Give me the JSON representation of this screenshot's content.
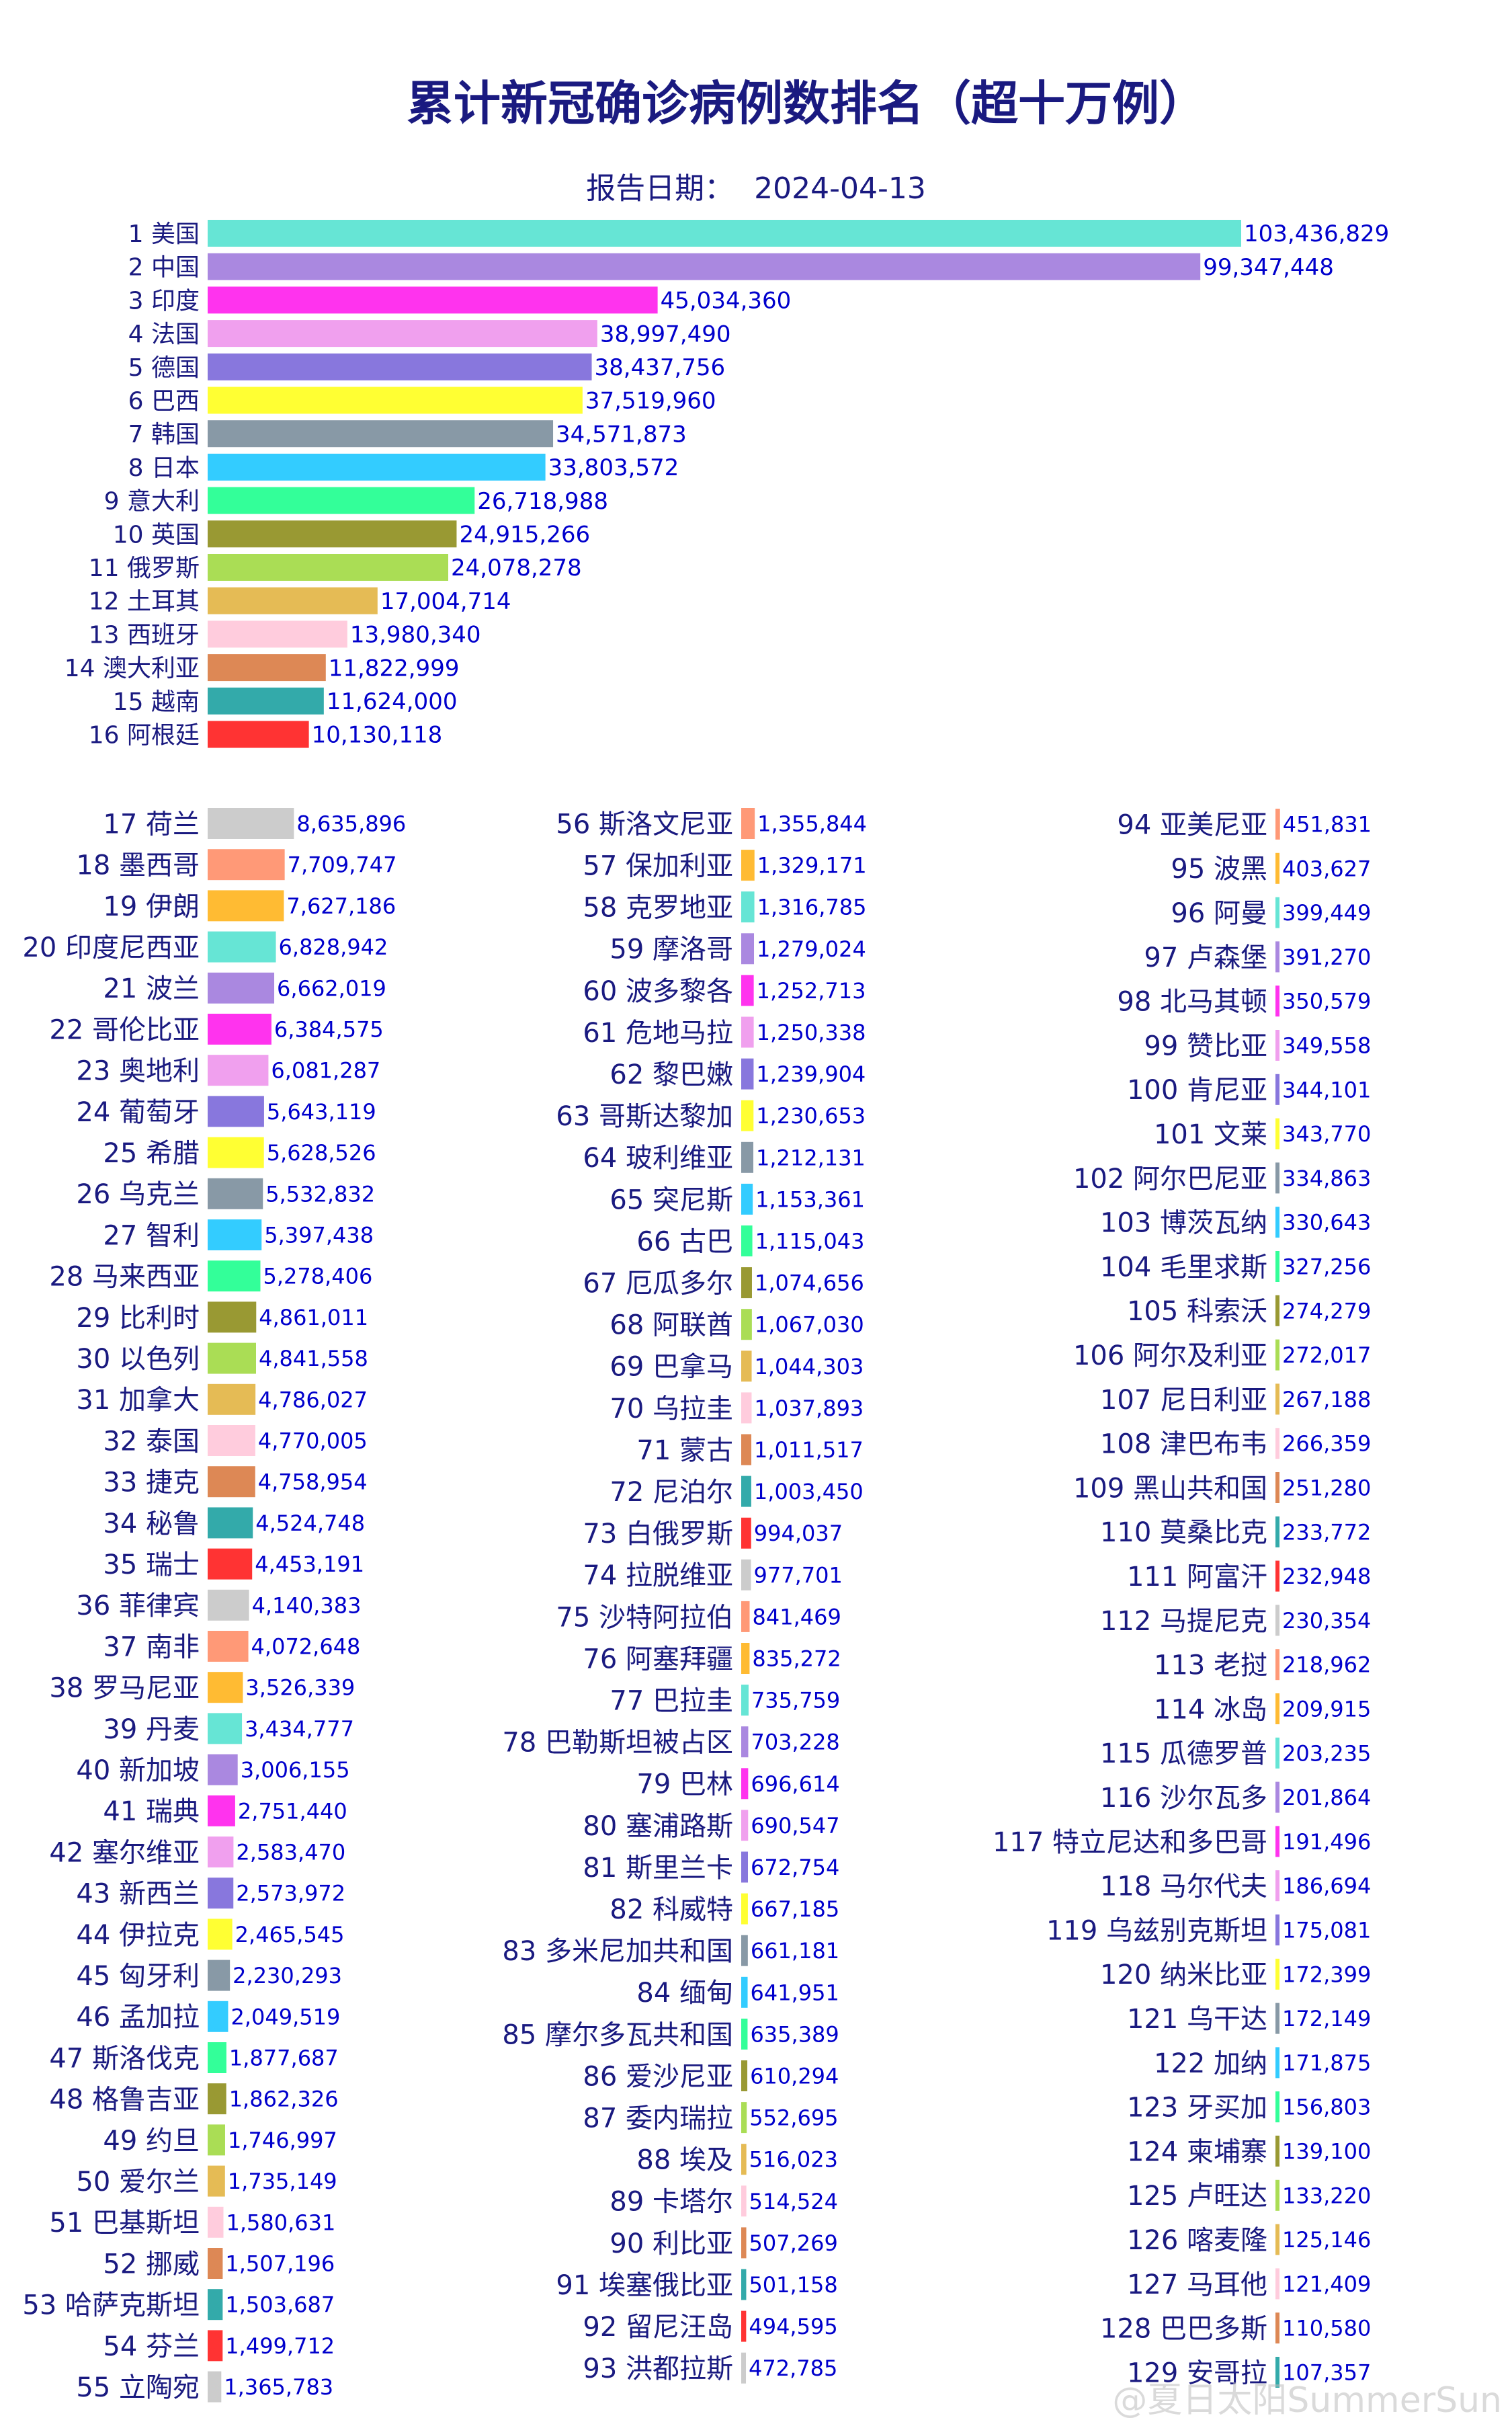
{
  "chart_data": {
    "type": "bar",
    "orientation": "horizontal",
    "title": "累计新冠确诊病例数排名（超十万例）",
    "subtitle_label": "报告日期：",
    "report_date": "2024-04-13",
    "watermark": "@夏日太阳SummerSun",
    "colors": [
      "#66e5d5",
      "#aa88e0",
      "#ff33ee",
      "#f0a0ee",
      "#8877dd",
      "#ffff33",
      "#8899a6",
      "#33ccff",
      "#33ff99",
      "#999933",
      "#aadd55",
      "#e5bb55",
      "#ffccdd",
      "#dd8855",
      "#33aaaa",
      "#ff3333",
      "#cccccc",
      "#ff9977",
      "#ffbb33"
    ],
    "categories": [
      "美国",
      "中国",
      "印度",
      "法国",
      "德国",
      "巴西",
      "韩国",
      "日本",
      "意大利",
      "英国",
      "俄罗斯",
      "土耳其",
      "西班牙",
      "澳大利亚",
      "越南",
      "阿根廷",
      "荷兰",
      "墨西哥",
      "伊朗",
      "印度尼西亚",
      "波兰",
      "哥伦比亚",
      "奥地利",
      "葡萄牙",
      "希腊",
      "乌克兰",
      "智利",
      "马来西亚",
      "比利时",
      "以色列",
      "加拿大",
      "泰国",
      "捷克",
      "秘鲁",
      "瑞士",
      "菲律宾",
      "南非",
      "罗马尼亚",
      "丹麦",
      "新加坡",
      "瑞典",
      "塞尔维亚",
      "新西兰",
      "伊拉克",
      "匈牙利",
      "孟加拉",
      "斯洛伐克",
      "格鲁吉亚",
      "约旦",
      "爱尔兰",
      "巴基斯坦",
      "挪威",
      "哈萨克斯坦",
      "芬兰",
      "立陶宛",
      "斯洛文尼亚",
      "保加利亚",
      "克罗地亚",
      "摩洛哥",
      "波多黎各",
      "危地马拉",
      "黎巴嫩",
      "哥斯达黎加",
      "玻利维亚",
      "突尼斯",
      "古巴",
      "厄瓜多尔",
      "阿联酋",
      "巴拿马",
      "乌拉圭",
      "蒙古",
      "尼泊尔",
      "白俄罗斯",
      "拉脱维亚",
      "沙特阿拉伯",
      "阿塞拜疆",
      "巴拉圭",
      "巴勒斯坦被占区",
      "巴林",
      "塞浦路斯",
      "斯里兰卡",
      "科威特",
      "多米尼加共和国",
      "缅甸",
      "摩尔多瓦共和国",
      "爱沙尼亚",
      "委内瑞拉",
      "埃及",
      "卡塔尔",
      "利比亚",
      "埃塞俄比亚",
      "留尼汪岛",
      "洪都拉斯",
      "亚美尼亚",
      "波黑",
      "阿曼",
      "卢森堡",
      "北马其顿",
      "赞比亚",
      "肯尼亚",
      "文莱",
      "阿尔巴尼亚",
      "博茨瓦纳",
      "毛里求斯",
      "科索沃",
      "阿尔及利亚",
      "尼日利亚",
      "津巴布韦",
      "黑山共和国",
      "莫桑比克",
      "阿富汗",
      "马提尼克",
      "老挝",
      "冰岛",
      "瓜德罗普",
      "沙尔瓦多",
      "特立尼达和多巴哥",
      "马尔代夫",
      "乌兹别克斯坦",
      "纳米比亚",
      "乌干达",
      "加纳",
      "牙买加",
      "柬埔寨",
      "卢旺达",
      "喀麦隆",
      "马耳他",
      "巴巴多斯",
      "安哥拉"
    ],
    "values": [
      103436829,
      99347448,
      45034360,
      38997490,
      38437756,
      37519960,
      34571873,
      33803572,
      26718988,
      24915266,
      24078278,
      17004714,
      13980340,
      11822999,
      11624000,
      10130118,
      8635896,
      7709747,
      7627186,
      6828942,
      6662019,
      6384575,
      6081287,
      5643119,
      5628526,
      5532832,
      5397438,
      5278406,
      4861011,
      4841558,
      4786027,
      4770005,
      4758954,
      4524748,
      4453191,
      4140383,
      4072648,
      3526339,
      3434777,
      3006155,
      2751440,
      2583470,
      2573972,
      2465545,
      2230293,
      2049519,
      1877687,
      1862326,
      1746997,
      1735149,
      1580631,
      1507196,
      1503687,
      1499712,
      1365783,
      1355844,
      1329171,
      1316785,
      1279024,
      1252713,
      1250338,
      1239904,
      1230653,
      1212131,
      1153361,
      1115043,
      1074656,
      1067030,
      1044303,
      1037893,
      1011517,
      1003450,
      994037,
      977701,
      841469,
      835272,
      735759,
      703228,
      696614,
      690547,
      672754,
      667185,
      661181,
      641951,
      635389,
      610294,
      552695,
      516023,
      514524,
      507269,
      501158,
      494595,
      472785,
      451831,
      403627,
      399449,
      391270,
      350579,
      349558,
      344101,
      343770,
      334863,
      330643,
      327256,
      274279,
      272017,
      267188,
      266359,
      251280,
      233772,
      232948,
      230354,
      218962,
      209915,
      203235,
      201864,
      191496,
      186694,
      175081,
      172399,
      172149,
      171875,
      156803,
      139100,
      133220,
      125146,
      121409,
      110580,
      107357
    ],
    "value_labels": [
      "103,436,829",
      "99,347,448",
      "45,034,360",
      "38,997,490",
      "38,437,756",
      "37,519,960",
      "34,571,873",
      "33,803,572",
      "26,718,988",
      "24,915,266",
      "24,078,278",
      "17,004,714",
      "13,980,340",
      "11,822,999",
      "11,624,000",
      "10,130,118",
      "8,635,896",
      "7,709,747",
      "7,627,186",
      "6,828,942",
      "6,662,019",
      "6,384,575",
      "6,081,287",
      "5,643,119",
      "5,628,526",
      "5,532,832",
      "5,397,438",
      "5,278,406",
      "4,861,011",
      "4,841,558",
      "4,786,027",
      "4,770,005",
      "4,758,954",
      "4,524,748",
      "4,453,191",
      "4,140,383",
      "4,072,648",
      "3,526,339",
      "3,434,777",
      "3,006,155",
      "2,751,440",
      "2,583,470",
      "2,573,972",
      "2,465,545",
      "2,230,293",
      "2,049,519",
      "1,877,687",
      "1,862,326",
      "1,746,997",
      "1,735,149",
      "1,580,631",
      "1,507,196",
      "1,503,687",
      "1,499,712",
      "1,365,783",
      "1,355,844",
      "1,329,171",
      "1,316,785",
      "1,279,024",
      "1,252,713",
      "1,250,338",
      "1,239,904",
      "1,230,653",
      "1,212,131",
      "1,153,361",
      "1,115,043",
      "1,074,656",
      "1,067,030",
      "1,044,303",
      "1,037,893",
      "1,011,517",
      "1,003,450",
      "994,037",
      "977,701",
      "841,469",
      "835,272",
      "735,759",
      "703,228",
      "696,614",
      "690,547",
      "672,754",
      "667,185",
      "661,181",
      "641,951",
      "635,389",
      "610,294",
      "552,695",
      "516,023",
      "514,524",
      "507,269",
      "501,158",
      "494,595",
      "472,785",
      "451,831",
      "403,627",
      "399,449",
      "391,270",
      "350,579",
      "349,558",
      "344,101",
      "343,770",
      "334,863",
      "330,643",
      "327,256",
      "274,279",
      "272,017",
      "267,188",
      "266,359",
      "251,280",
      "233,772",
      "232,948",
      "230,354",
      "218,962",
      "209,915",
      "203,235",
      "201,864",
      "191,496",
      "186,694",
      "175,081",
      "172,399",
      "172,149",
      "171,875",
      "156,803",
      "139,100",
      "133,220",
      "125,146",
      "121,409",
      "110,580",
      "107,357"
    ],
    "panels": [
      {
        "ranks": [
          1,
          16
        ]
      },
      {
        "ranks": [
          17,
          55
        ]
      },
      {
        "ranks": [
          56,
          93
        ]
      },
      {
        "ranks": [
          94,
          129
        ]
      }
    ]
  }
}
